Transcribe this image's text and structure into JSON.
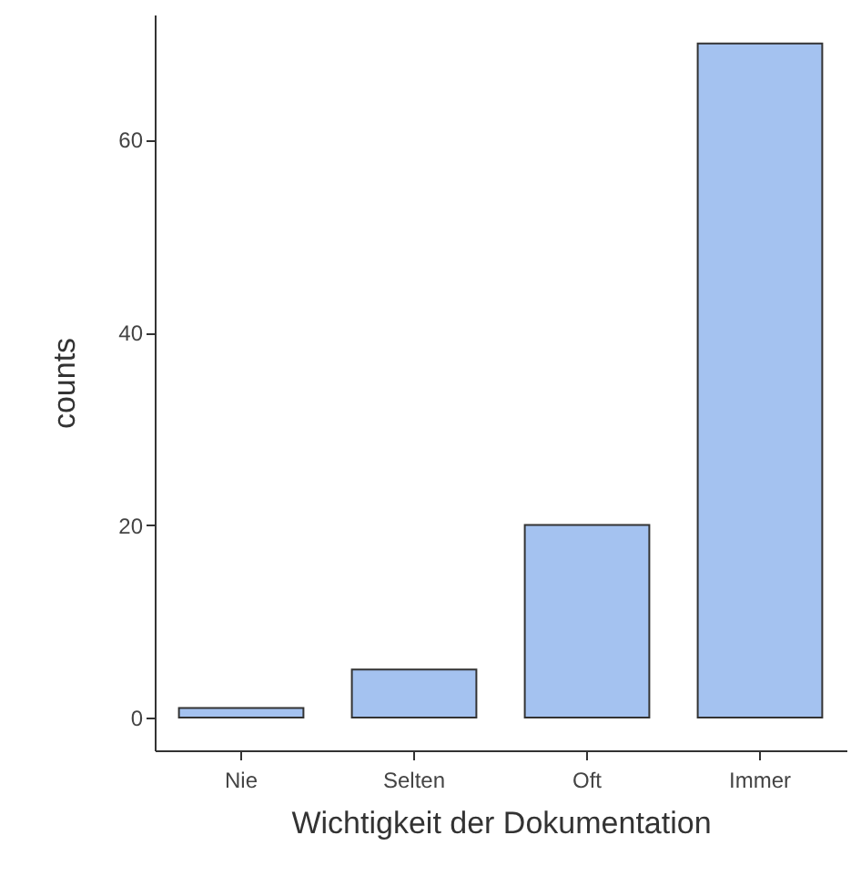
{
  "chart_data": {
    "type": "bar",
    "xlabel": "Wichtigkeit der Dokumentation",
    "ylabel": "counts",
    "categories": [
      "Nie",
      "Selten",
      "Oft",
      "Immer"
    ],
    "values": [
      1,
      5,
      20,
      70
    ],
    "color": "#a4c2f0",
    "ylim": [
      -3.4,
      73
    ],
    "yticks": [
      0,
      20,
      40,
      60
    ],
    "grid": false
  }
}
